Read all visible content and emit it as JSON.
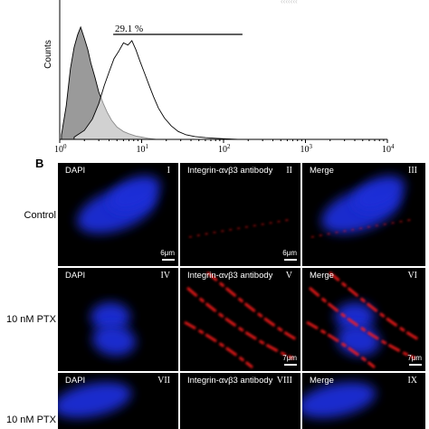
{
  "panel_a": {
    "top_text": "‹‹‹‹‹‹‹",
    "ylabel": "Counts",
    "gate_label": "29.1 %",
    "x_ticks": [
      {
        "base": "10",
        "exp": "0"
      },
      {
        "base": "10",
        "exp": "1"
      },
      {
        "base": "10",
        "exp": "2"
      },
      {
        "base": "10",
        "exp": "3"
      },
      {
        "base": "10",
        "exp": "4"
      }
    ]
  },
  "chart_data": {
    "type": "area",
    "xscale": "log",
    "xlim": [
      1,
      10000
    ],
    "ylabel": "Counts",
    "gate": {
      "label": "29.1 %",
      "x_range": [
        4.5,
        170
      ]
    },
    "series": [
      {
        "fill": "#9a9a9a",
        "x": [
          1.05,
          1.2,
          1.35,
          1.5,
          1.65,
          1.8,
          2.0,
          2.2,
          2.4,
          2.7,
          3.0,
          3.4,
          3.8,
          4.3,
          5.0,
          6.0,
          7.0,
          8.5,
          10,
          12,
          15
        ],
        "y": [
          4,
          30,
          63,
          82,
          93,
          100,
          90,
          80,
          68,
          55,
          42,
          32,
          24,
          17,
          11,
          7,
          5,
          3,
          2,
          1,
          0
        ]
      },
      {
        "fill": "#ffffff",
        "x": [
          1.5,
          2.0,
          2.5,
          3.0,
          3.5,
          4.0,
          4.6,
          5.2,
          6.0,
          6.8,
          7.6,
          8.5,
          9.5,
          11,
          12.5,
          14,
          16,
          19,
          23,
          28,
          35,
          45,
          60,
          80,
          110,
          150
        ],
        "y": [
          2,
          8,
          18,
          32,
          48,
          60,
          72,
          78,
          86,
          84,
          88,
          80,
          70,
          58,
          47,
          38,
          28,
          19,
          12,
          7,
          4,
          2.5,
          1.5,
          1,
          0.5,
          0
        ]
      }
    ]
  },
  "panel_b": {
    "letter": "B",
    "rows": [
      {
        "label": "Control",
        "tiles": [
          {
            "title": "DAPI",
            "numeral": "I",
            "scale": "6μm"
          },
          {
            "title": "Integrin-αvβ3 antibody",
            "numeral": "II",
            "scale": "6μm"
          },
          {
            "title": "Merge",
            "numeral": "III",
            "scale": ""
          }
        ]
      },
      {
        "label": "10 nM PTX",
        "tiles": [
          {
            "title": "DAPI",
            "numeral": "IV",
            "scale": ""
          },
          {
            "title": "Integrin-αvβ3 antibody",
            "numeral": "V",
            "scale": "7μm"
          },
          {
            "title": "Merge",
            "numeral": "VI",
            "scale": "7μm"
          }
        ]
      },
      {
        "label": "10 nM PTX",
        "tiles": [
          {
            "title": "DAPI",
            "numeral": "VII",
            "scale": ""
          },
          {
            "title": "Integrin-αvβ3 antibody",
            "numeral": "VIII",
            "scale": ""
          },
          {
            "title": "Merge",
            "numeral": "IX",
            "scale": ""
          }
        ]
      }
    ],
    "colors": {
      "nucleus": "#1c2fd8",
      "integrin": "#ff1a1a",
      "background": "#000000"
    }
  }
}
